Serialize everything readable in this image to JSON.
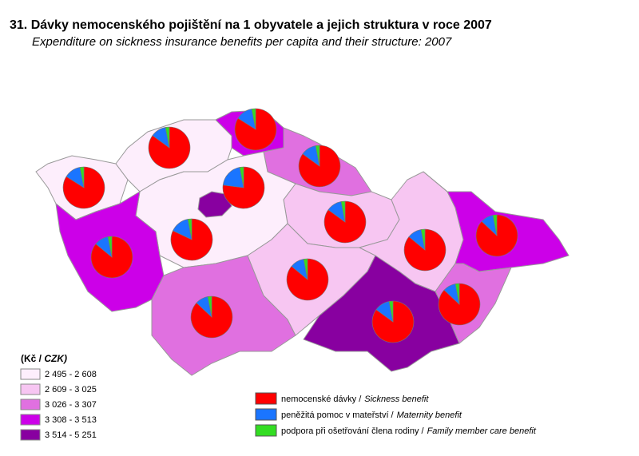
{
  "map": {
    "title": "31. Dávky nemocenského pojištění na 1 obyvatele a jejich struktura v roce 2007",
    "subtitle": "Expenditure on sickness insurance benefits per capita and their structure: 2007",
    "class_legend": {
      "unit_cz": "(Kč /",
      "unit_en": "CZK)",
      "classes": [
        {
          "label": "2 495 - 2 608",
          "color": "#fdeefc"
        },
        {
          "label": "2 609 - 3 025",
          "color": "#f7c6f2"
        },
        {
          "label": "3 026 - 3 307",
          "color": "#e070e0"
        },
        {
          "label": "3 308 - 3 513",
          "color": "#cc00e8"
        },
        {
          "label": "3 514 - 5 251",
          "color": "#8800a0"
        }
      ]
    },
    "pie_legend": [
      {
        "cz": "nemocenské dávky /",
        "en": "Sickness benefit",
        "color": "#ff0000"
      },
      {
        "cz": "peněžitá pomoc v mateřství /",
        "en": "Maternity benefit",
        "color": "#1a75ff"
      },
      {
        "cz": "podpora při ošetřování člena rodiny /",
        "en": "Family member care benefit",
        "color": "#33dd22"
      }
    ],
    "regions": [
      {
        "class": 0,
        "values": [
          84,
          13,
          3
        ]
      },
      {
        "class": 0,
        "values": [
          85,
          12,
          3
        ]
      },
      {
        "class": 3,
        "values": [
          84,
          13,
          3
        ]
      },
      {
        "class": 2,
        "values": [
          85,
          12,
          3
        ]
      },
      {
        "class": 1,
        "values": [
          85,
          12,
          3
        ]
      },
      {
        "class": 0,
        "values": [
          82,
          15,
          3
        ]
      },
      {
        "class": 4,
        "values": [
          77,
          20,
          3
        ]
      },
      {
        "class": 3,
        "values": [
          86,
          11,
          3
        ]
      },
      {
        "class": 2,
        "values": [
          87,
          10,
          3
        ]
      },
      {
        "class": 1,
        "values": [
          86,
          11,
          3
        ]
      },
      {
        "class": 4,
        "values": [
          85,
          12,
          3
        ]
      },
      {
        "class": 1,
        "values": [
          86,
          11,
          3
        ]
      },
      {
        "class": 3,
        "values": [
          87,
          10,
          3
        ]
      },
      {
        "class": 2,
        "values": [
          87,
          10,
          3
        ]
      }
    ]
  }
}
